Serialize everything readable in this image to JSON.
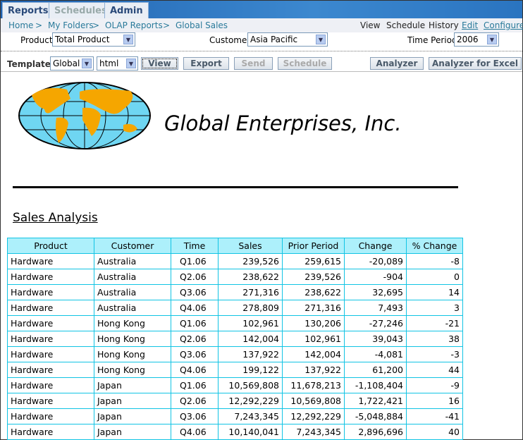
{
  "tabs": [
    "Reports",
    "Schedules",
    "Admin"
  ],
  "breadcrumb": [
    "Home",
    "My Folders",
    "OLAP Reports",
    "Global Sales"
  ],
  "breadcrumb_sep": ">",
  "actions": [
    "View",
    "Schedule",
    "History",
    "Edit",
    "Configure"
  ],
  "params": {
    "product_label": "Product",
    "product": "Total Product",
    "customer_label": "Customer",
    "customer": "Asia Pacific",
    "time_label": "Time Period",
    "time": "2006"
  },
  "template": {
    "label": "Template",
    "template": "Global",
    "format": "html"
  },
  "buttons": {
    "view": "View",
    "export": "Export",
    "send": "Send",
    "schedule": "Schedule",
    "analyzer": "Analyzer",
    "analyzer_excel": "Analyzer for Excel"
  },
  "report": {
    "company": "Global Enterprises, Inc.",
    "heading": "Sales Analysis"
  },
  "table": {
    "headers": [
      "Product",
      "Customer",
      "Time",
      "Sales",
      "Prior Period",
      "Change",
      "% Change"
    ],
    "rows": [
      [
        "Hardware",
        "Australia",
        "Q1.06",
        "239,526",
        "259,615",
        "-20,089",
        "-8"
      ],
      [
        "Hardware",
        "Australia",
        "Q2.06",
        "238,622",
        "239,526",
        "-904",
        "0"
      ],
      [
        "Hardware",
        "Australia",
        "Q3.06",
        "271,316",
        "238,622",
        "32,695",
        "14"
      ],
      [
        "Hardware",
        "Australia",
        "Q4.06",
        "278,809",
        "271,316",
        "7,493",
        "3"
      ],
      [
        "Hardware",
        "Hong Kong",
        "Q1.06",
        "102,961",
        "130,206",
        "-27,246",
        "-21"
      ],
      [
        "Hardware",
        "Hong Kong",
        "Q2.06",
        "142,004",
        "102,961",
        "39,043",
        "38"
      ],
      [
        "Hardware",
        "Hong Kong",
        "Q3.06",
        "137,922",
        "142,004",
        "-4,081",
        "-3"
      ],
      [
        "Hardware",
        "Hong Kong",
        "Q4.06",
        "199,122",
        "137,922",
        "61,200",
        "44"
      ],
      [
        "Hardware",
        "Japan",
        "Q1.06",
        "10,569,808",
        "11,678,213",
        "-1,108,404",
        "-9"
      ],
      [
        "Hardware",
        "Japan",
        "Q2.06",
        "12,292,229",
        "10,569,808",
        "1,722,421",
        "16"
      ],
      [
        "Hardware",
        "Japan",
        "Q3.06",
        "7,243,345",
        "12,292,229",
        "-5,048,884",
        "-41"
      ],
      [
        "Hardware",
        "Japan",
        "Q4.06",
        "10,140,041",
        "7,243,345",
        "2,896,696",
        "40"
      ]
    ]
  }
}
